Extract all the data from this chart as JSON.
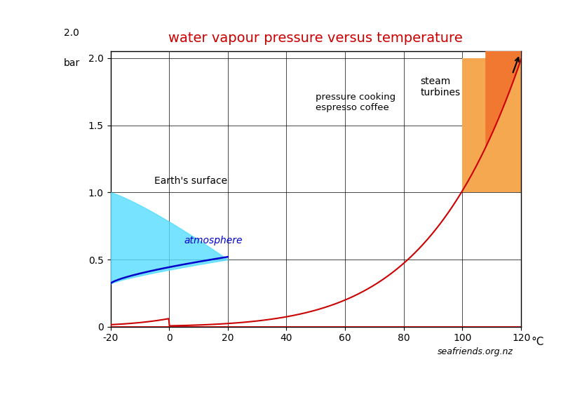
{
  "title": "water vapour pressure versus temperature",
  "title_color": "#cc0000",
  "watermark": "seafriends.org.nz",
  "bg_color": "#ffffff",
  "xlim": [
    -20,
    120
  ],
  "ylim": [
    0,
    2.05
  ],
  "yticks": [
    0,
    0.5,
    1.0,
    1.5,
    2.0
  ],
  "xticks": [
    -20,
    0,
    20,
    40,
    60,
    80,
    100,
    120
  ],
  "curve_color": "#cc0000",
  "atm_line_color": "#0000cc",
  "atm_fill_color": "#55ddff",
  "orange_light": "#f5a850",
  "orange_dark": "#f07830",
  "label_earths_surface": "Earth's surface",
  "label_atmosphere": "atmosphere",
  "label_pressure_cooking": "pressure cooking\nespresso coffee",
  "label_steam": "steam\nturbines"
}
